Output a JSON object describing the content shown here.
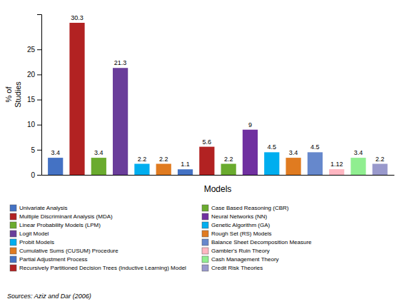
{
  "chart_data": {
    "type": "bar",
    "categories": [
      "Univariate Analysis",
      "Multiple Discriminant Analysis (MDA)",
      "Linear Probability Models (LPM)",
      "Logit Model",
      "Probit Models",
      "Cumulative Sums (CUSUM) Procedure",
      "Partial Adjustment Process",
      "Recursively Partitioned Decision Trees (Inductive Learning) Model",
      "Case Based Reasoning (CBR)",
      "Neural Networks (NN)",
      "Genetic Algorithm (GA)",
      "Rough Set (RS) Models",
      "Balance Sheet Decomposition Measure",
      "Gambler's Ruin Theory",
      "Cash Management Theory",
      "Credit Risk Theories"
    ],
    "values": [
      3.4,
      30.3,
      3.4,
      21.3,
      2.2,
      2.2,
      1.1,
      5.6,
      2.2,
      9.0,
      4.5,
      3.4,
      4.5,
      1.12,
      3.4,
      2.2
    ],
    "colors": [
      "#4472C4",
      "#B22222",
      "#6AAB2E",
      "#6A3D9A",
      "#00AEEF",
      "#E07B20",
      "#4472C4",
      "#B22222",
      "#6AAB2E",
      "#7030A0",
      "#00AEEF",
      "#E07B20",
      "#6688CC",
      "#FFB6C1",
      "#90EE90",
      "#9999CC"
    ],
    "y_label": "% of\nStudies",
    "x_label": "Models",
    "annotations": [
      "Sources: Aziz and Dar (2006)"
    ],
    "ylim": [
      0,
      32
    ],
    "yticks": [
      0,
      5,
      10,
      15,
      20,
      25
    ],
    "grid": false,
    "legend": "bottom",
    "data_labels": true,
    "tick_labels": "y"
  }
}
